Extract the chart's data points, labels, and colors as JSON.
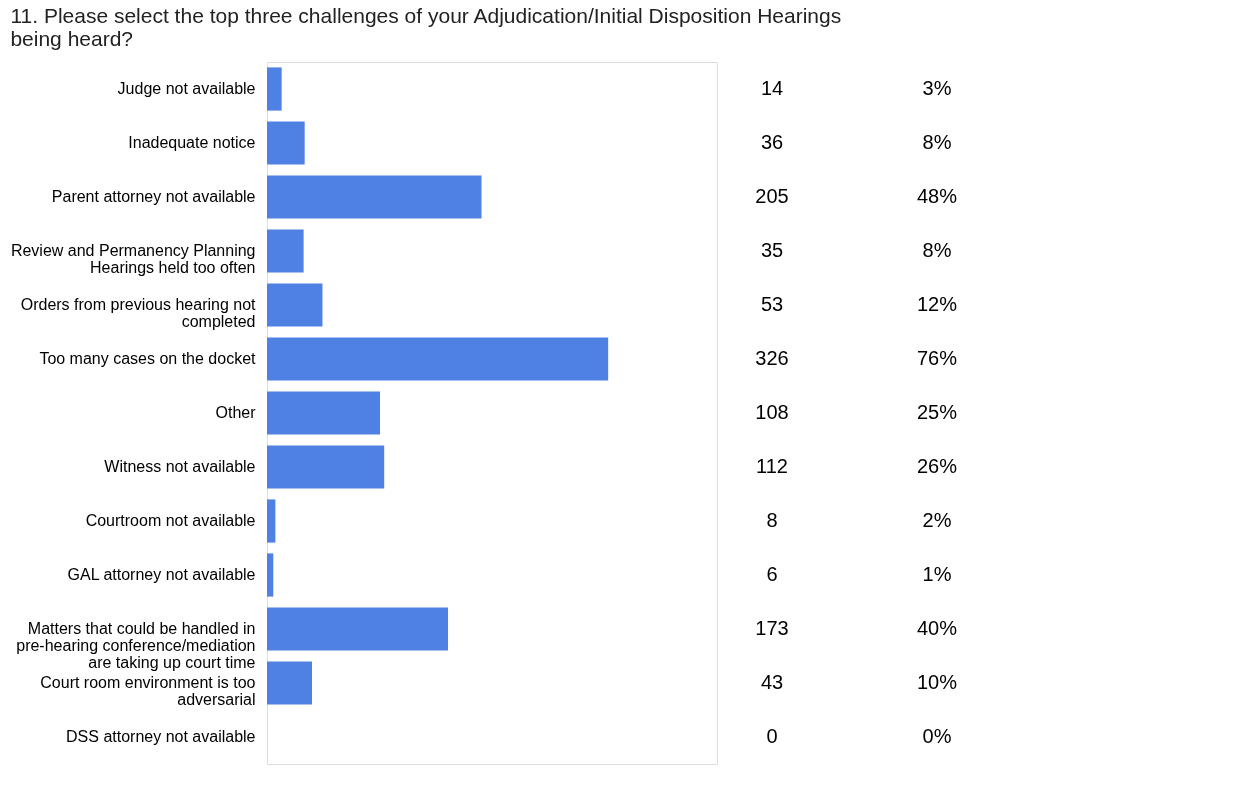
{
  "chart_data": {
    "type": "bar",
    "orientation": "horizontal",
    "title": "11. Please select the top three challenges of your Adjudication/Initial Disposition Hearings being heard?",
    "categories": [
      "Judge not available",
      "Inadequate notice",
      "Parent attorney not available",
      "Review and Permanency Planning Hearings held too often",
      "Orders from previous hearing not completed",
      "Too many cases on the docket",
      "Other",
      "Witness not available",
      "Courtroom not available",
      "GAL attorney not available",
      "Matters that could be handled in pre-hearing conference/mediation are taking up court time",
      "Court room environment is too adversarial",
      "DSS attorney not available"
    ],
    "values": [
      14,
      36,
      205,
      35,
      53,
      326,
      108,
      112,
      8,
      6,
      173,
      43,
      0
    ],
    "color": "#4f81e5",
    "data_labels": true,
    "xlim": [
      0,
      430
    ],
    "tick_labels": "y",
    "grid": false,
    "annotations": [
      "3%",
      "8%",
      "48%",
      "8%",
      "12%",
      "76%",
      "25%",
      "26%",
      "2%",
      "1%",
      "40%",
      "10%",
      "0%"
    ]
  }
}
